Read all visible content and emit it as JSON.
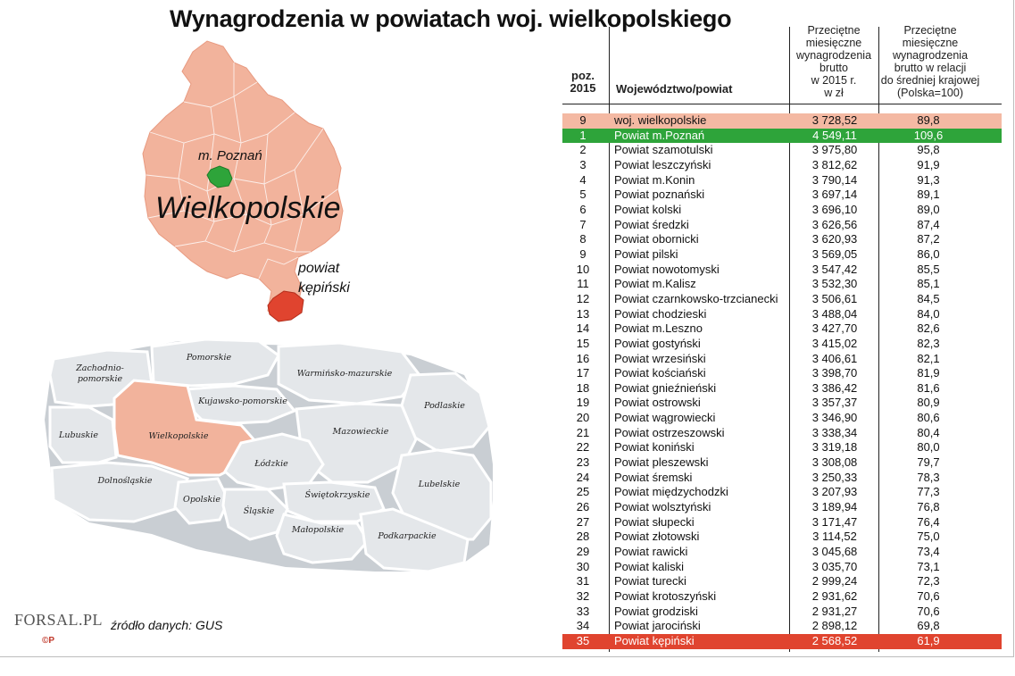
{
  "title": "Wynagrodzenia w powiatach woj. wielkopolskiego",
  "map": {
    "poznan_label": "m. Poznań",
    "region_label": "Wielkopolskie",
    "powiat_label_1": "powiat",
    "powiat_label_2": "kępiński",
    "colors": {
      "region": "#f2b39c",
      "poznan": "#2ea43a",
      "kepno": "#e0442f",
      "land": "#e4e7ea"
    }
  },
  "poland_map": {
    "regions": [
      "Zachodnio-",
      "pomorskie",
      "Pomorskie",
      "Warmińsko-mazurskie",
      "Kujawsko-pomorskie",
      "Podlaskie",
      "Lubuskie",
      "Wielkopolskie",
      "Mazowieckie",
      "Łódzkie",
      "Dolnośląskie",
      "Lubelskie",
      "Opolskie",
      "Świętokrzyskie",
      "Śląskie",
      "Małopolskie",
      "Podkarpackie"
    ]
  },
  "source": "źródło danych: GUS",
  "logo": "FORSAL.PL",
  "logo_mark": "©P",
  "table": {
    "headers": {
      "rank": [
        "poz.",
        "2015"
      ],
      "name": "Województwo/powiat",
      "pay": [
        "Przeciętne",
        "miesięczne",
        "wynagrodzenia",
        "brutto",
        "w 2015 r.",
        "w zł"
      ],
      "pct": [
        "Przeciętne",
        "miesięczne",
        "wynagrodzenia",
        "brutto w relacji",
        "do średniej krajowej",
        "(Polska=100)"
      ]
    },
    "rows": [
      {
        "rank": "9",
        "name": "woj. wielkopolskie",
        "pay": "3 728,52",
        "pct": "89,8",
        "hl": "pink"
      },
      {
        "rank": "1",
        "name": "Powiat m.Poznań",
        "pay": "4 549,11",
        "pct": "109,6",
        "hl": "green"
      },
      {
        "rank": "2",
        "name": "Powiat szamotulski",
        "pay": "3 975,80",
        "pct": "95,8"
      },
      {
        "rank": "3",
        "name": "Powiat leszczyński",
        "pay": "3 812,62",
        "pct": "91,9"
      },
      {
        "rank": "4",
        "name": "Powiat m.Konin",
        "pay": "3 790,14",
        "pct": "91,3"
      },
      {
        "rank": "5",
        "name": "Powiat poznański",
        "pay": "3 697,14",
        "pct": "89,1"
      },
      {
        "rank": "6",
        "name": "Powiat kolski",
        "pay": "3 696,10",
        "pct": "89,0"
      },
      {
        "rank": "7",
        "name": "Powiat średzki",
        "pay": "3 626,56",
        "pct": "87,4"
      },
      {
        "rank": "8",
        "name": "Powiat obornicki",
        "pay": "3 620,93",
        "pct": "87,2"
      },
      {
        "rank": "9",
        "name": "Powiat pilski",
        "pay": "3 569,05",
        "pct": "86,0"
      },
      {
        "rank": "10",
        "name": "Powiat nowotomyski",
        "pay": "3 547,42",
        "pct": "85,5"
      },
      {
        "rank": "11",
        "name": "Powiat m.Kalisz",
        "pay": "3 532,30",
        "pct": "85,1"
      },
      {
        "rank": "12",
        "name": "Powiat czarnkowsko-trzcianecki",
        "pay": "3 506,61",
        "pct": "84,5"
      },
      {
        "rank": "13",
        "name": "Powiat chodzieski",
        "pay": "3 488,04",
        "pct": "84,0"
      },
      {
        "rank": "14",
        "name": "Powiat m.Leszno",
        "pay": "3 427,70",
        "pct": "82,6"
      },
      {
        "rank": "15",
        "name": "Powiat gostyński",
        "pay": "3 415,02",
        "pct": "82,3"
      },
      {
        "rank": "16",
        "name": "Powiat wrzesiński",
        "pay": "3 406,61",
        "pct": "82,1"
      },
      {
        "rank": "17",
        "name": "Powiat kościański",
        "pay": "3 398,70",
        "pct": "81,9"
      },
      {
        "rank": "18",
        "name": "Powiat gnieźnieński",
        "pay": "3 386,42",
        "pct": "81,6"
      },
      {
        "rank": "19",
        "name": "Powiat ostrowski",
        "pay": "3 357,37",
        "pct": "80,9"
      },
      {
        "rank": "20",
        "name": "Powiat wągrowiecki",
        "pay": "3 346,90",
        "pct": "80,6"
      },
      {
        "rank": "21",
        "name": "Powiat ostrzeszowski",
        "pay": "3 338,34",
        "pct": "80,4"
      },
      {
        "rank": "22",
        "name": "Powiat koniński",
        "pay": "3 319,18",
        "pct": "80,0"
      },
      {
        "rank": "23",
        "name": "Powiat pleszewski",
        "pay": "3 308,08",
        "pct": "79,7"
      },
      {
        "rank": "24",
        "name": "Powiat śremski",
        "pay": "3 250,33",
        "pct": "78,3"
      },
      {
        "rank": "25",
        "name": "Powiat międzychodzki",
        "pay": "3 207,93",
        "pct": "77,3"
      },
      {
        "rank": "26",
        "name": "Powiat wolsztyński",
        "pay": "3 189,94",
        "pct": "76,8"
      },
      {
        "rank": "27",
        "name": "Powiat słupecki",
        "pay": "3 171,47",
        "pct": "76,4"
      },
      {
        "rank": "28",
        "name": "Powiat złotowski",
        "pay": "3 114,52",
        "pct": "75,0"
      },
      {
        "rank": "29",
        "name": "Powiat rawicki",
        "pay": "3 045,68",
        "pct": "73,4"
      },
      {
        "rank": "30",
        "name": "Powiat kaliski",
        "pay": "3 035,70",
        "pct": "73,1"
      },
      {
        "rank": "31",
        "name": "Powiat turecki",
        "pay": "2 999,24",
        "pct": "72,3"
      },
      {
        "rank": "32",
        "name": "Powiat krotoszyński",
        "pay": "2 931,62",
        "pct": "70,6"
      },
      {
        "rank": "33",
        "name": "Powiat grodziski",
        "pay": "2 931,27",
        "pct": "70,6"
      },
      {
        "rank": "34",
        "name": "Powiat jarociński",
        "pay": "2 898,12",
        "pct": "69,8"
      },
      {
        "rank": "35",
        "name": "Powiat kępiński",
        "pay": "2 568,52",
        "pct": "61,9",
        "hl": "red"
      }
    ]
  }
}
